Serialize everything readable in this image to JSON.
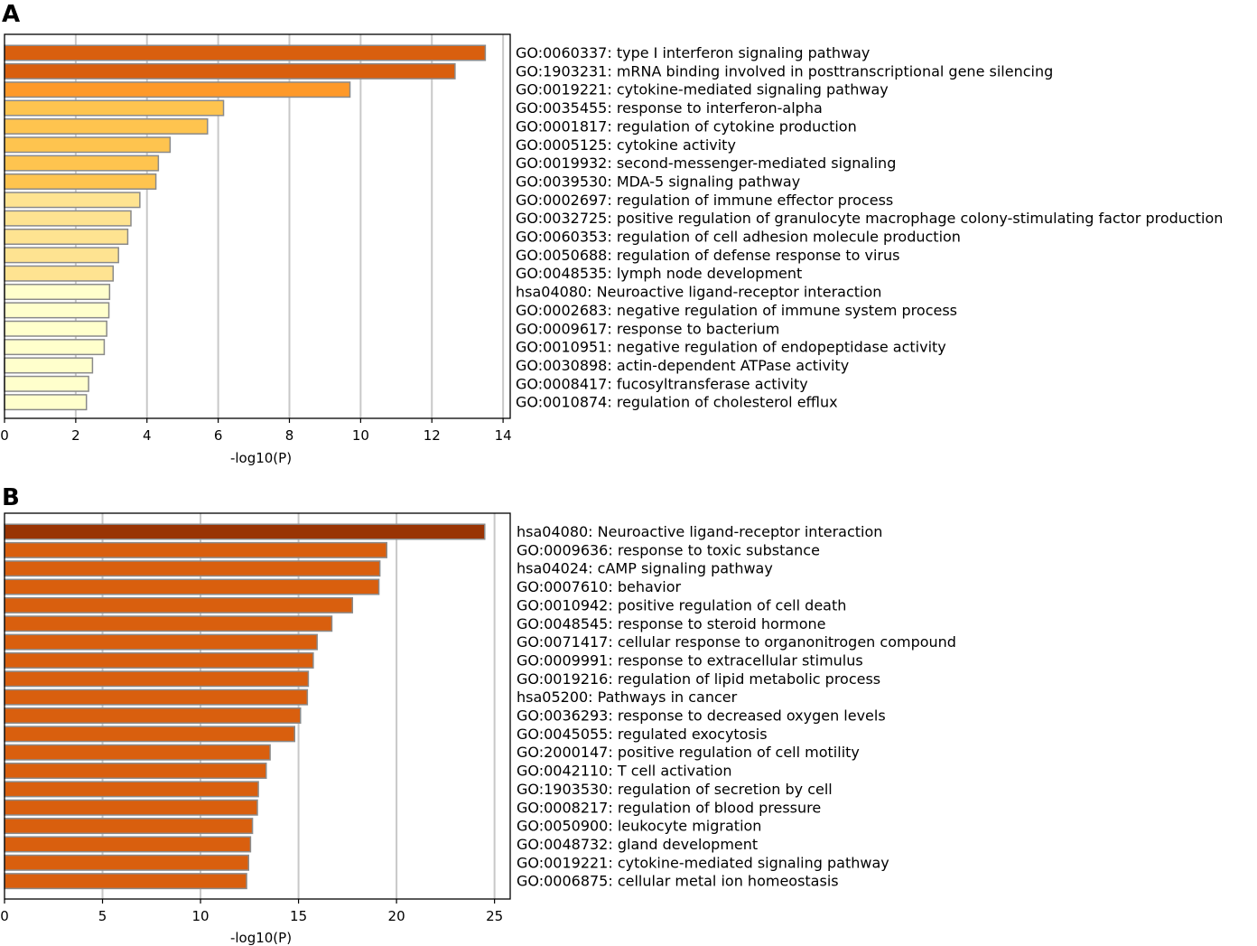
{
  "chart_data": [
    {
      "panel": "A",
      "type": "bar",
      "orientation": "horizontal",
      "xlabel": "-log10(P)",
      "xlim": [
        0,
        14.2
      ],
      "xticks": [
        0,
        2,
        4,
        6,
        8,
        10,
        12,
        14
      ],
      "gridlines": true,
      "categories": [
        "GO:0060337: type I interferon signaling pathway",
        "GO:1903231: mRNA binding involved in posttranscriptional gene silencing",
        "GO:0019221: cytokine-mediated signaling pathway",
        "GO:0035455: response to interferon-alpha",
        "GO:0001817: regulation of cytokine production",
        "GO:0005125: cytokine activity",
        "GO:0019932: second-messenger-mediated signaling",
        "GO:0039530: MDA-5 signaling pathway",
        "GO:0002697: regulation of immune effector process",
        "GO:0032725: positive regulation of granulocyte macrophage colony-stimulating factor production",
        "GO:0060353: regulation of cell adhesion molecule production",
        "GO:0050688: regulation of defense response to virus",
        "GO:0048535: lymph node development",
        "hsa04080: Neuroactive ligand-receptor interaction",
        "GO:0002683: negative regulation of immune system process",
        "GO:0009617: response to bacterium",
        "GO:0010951: negative regulation of endopeptidase activity",
        "GO:0030898: actin-dependent ATPase activity",
        "GO:0008417: fucosyltransferase activity",
        "GO:0010874: regulation of cholesterol efflux"
      ],
      "values": [
        13.5,
        12.65,
        9.7,
        6.15,
        5.7,
        4.65,
        4.32,
        4.25,
        3.8,
        3.55,
        3.46,
        3.2,
        3.05,
        2.95,
        2.93,
        2.87,
        2.8,
        2.47,
        2.36,
        2.3
      ],
      "colors": [
        "#d95f0e",
        "#d95f0e",
        "#fe9929",
        "#fec44f",
        "#fec44f",
        "#fec44f",
        "#fec44f",
        "#fec44f",
        "#fee391",
        "#fee391",
        "#fee391",
        "#fee391",
        "#fee391",
        "#ffffcc",
        "#ffffcc",
        "#ffffcc",
        "#ffffcc",
        "#ffffcc",
        "#ffffcc",
        "#ffffcc"
      ]
    },
    {
      "panel": "B",
      "type": "bar",
      "orientation": "horizontal",
      "xlabel": "-log10(P)",
      "xlim": [
        0,
        25.8
      ],
      "xticks": [
        0,
        5,
        10,
        15,
        20,
        25
      ],
      "gridlines": true,
      "categories": [
        "hsa04080: Neuroactive ligand-receptor interaction",
        "GO:0009636: response to toxic substance",
        "hsa04024: cAMP signaling pathway",
        "GO:0007610: behavior",
        "GO:0010942: positive regulation of cell death",
        "GO:0048545: response to steroid hormone",
        "GO:0071417: cellular response to organonitrogen compound",
        "GO:0009991: response to extracellular stimulus",
        "GO:0019216: regulation of lipid metabolic process",
        "hsa05200: Pathways in cancer",
        "GO:0036293: response to decreased oxygen levels",
        "GO:0045055: regulated exocytosis",
        "GO:2000147: positive regulation of cell motility",
        "GO:0042110: T cell activation",
        "GO:1903530: regulation of secretion by cell",
        "GO:0008217: regulation of blood pressure",
        "GO:0050900: leukocyte migration",
        "GO:0048732: gland development",
        "GO:0019221: cytokine-mediated signaling pathway",
        "GO:0006875: cellular metal ion homeostasis"
      ],
      "values": [
        24.5,
        19.5,
        19.15,
        19.1,
        17.75,
        16.7,
        15.95,
        15.75,
        15.5,
        15.45,
        15.1,
        14.8,
        13.55,
        13.35,
        12.95,
        12.9,
        12.65,
        12.55,
        12.45,
        12.35
      ],
      "colors": [
        "#993404",
        "#d95f0e",
        "#d95f0e",
        "#d95f0e",
        "#d95f0e",
        "#d95f0e",
        "#d95f0e",
        "#d95f0e",
        "#d95f0e",
        "#d95f0e",
        "#d95f0e",
        "#d95f0e",
        "#d95f0e",
        "#d95f0e",
        "#d95f0e",
        "#d95f0e",
        "#d95f0e",
        "#d95f0e",
        "#d95f0e",
        "#d95f0e"
      ]
    }
  ]
}
